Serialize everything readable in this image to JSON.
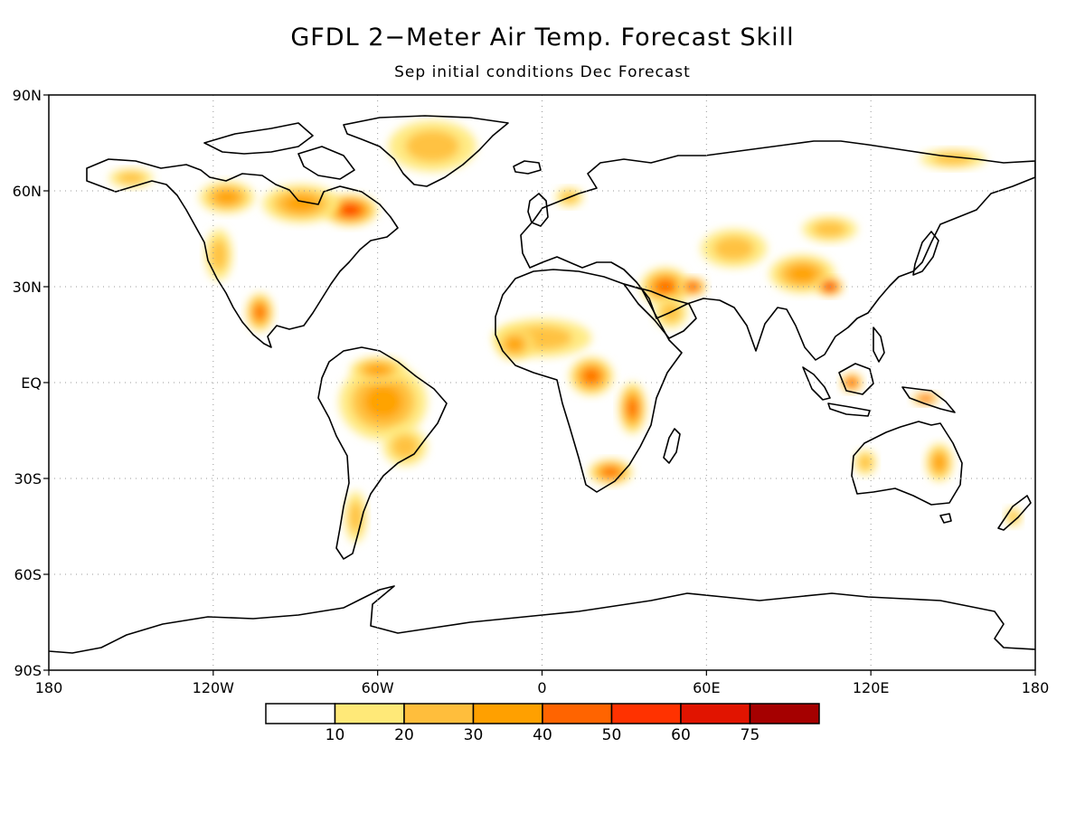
{
  "title": "GFDL 2−Meter Air Temp. Forecast Skill",
  "subtitle": "Sep initial conditions   Dec Forecast",
  "map": {
    "lon_range": [
      -180,
      180
    ],
    "lat_range": [
      -90,
      90
    ],
    "lat_ticks": [
      {
        "value": 90,
        "label": "90N"
      },
      {
        "value": 60,
        "label": "60N"
      },
      {
        "value": 30,
        "label": "30N"
      },
      {
        "value": 0,
        "label": "EQ"
      },
      {
        "value": -30,
        "label": "30S"
      },
      {
        "value": -60,
        "label": "60S"
      },
      {
        "value": -90,
        "label": "90S"
      }
    ],
    "lon_ticks": [
      {
        "value": -180,
        "label": "180"
      },
      {
        "value": -120,
        "label": "120W"
      },
      {
        "value": -60,
        "label": "60W"
      },
      {
        "value": 0,
        "label": "0"
      },
      {
        "value": 60,
        "label": "60E"
      },
      {
        "value": 120,
        "label": "120E"
      },
      {
        "value": 180,
        "label": "180"
      }
    ],
    "grid": "dotted"
  },
  "colorbar": {
    "colors": [
      "#ffffff",
      "#ffe978",
      "#ffbe3c",
      "#ffa000",
      "#ff6400",
      "#ff3200",
      "#e11400",
      "#a50000"
    ],
    "labels": [
      "10",
      "20",
      "30",
      "40",
      "50",
      "60",
      "75"
    ]
  },
  "skill_regions": [
    {
      "name": "eastern-canada",
      "lon": -70,
      "lat": 54,
      "rx": 10,
      "ry": 5,
      "level": 5
    },
    {
      "name": "hudson-bay-region",
      "lon": -88,
      "lat": 56,
      "rx": 14,
      "ry": 6,
      "level": 3
    },
    {
      "name": "western-canada",
      "lon": -115,
      "lat": 58,
      "rx": 10,
      "ry": 5,
      "level": 3
    },
    {
      "name": "greenland",
      "lon": -40,
      "lat": 74,
      "rx": 16,
      "ry": 8,
      "level": 2
    },
    {
      "name": "alaska",
      "lon": -150,
      "lat": 64,
      "rx": 8,
      "ry": 3,
      "level": 2
    },
    {
      "name": "western-us",
      "lon": -118,
      "lat": 40,
      "rx": 5,
      "ry": 8,
      "level": 2
    },
    {
      "name": "mexico",
      "lon": -103,
      "lat": 22,
      "rx": 5,
      "ry": 6,
      "level": 4
    },
    {
      "name": "amazon",
      "lon": -58,
      "lat": -6,
      "rx": 16,
      "ry": 12,
      "level": 3
    },
    {
      "name": "northern-south-america",
      "lon": -60,
      "lat": 4,
      "rx": 10,
      "ry": 4,
      "level": 3
    },
    {
      "name": "southern-brazil",
      "lon": -50,
      "lat": -20,
      "rx": 8,
      "ry": 6,
      "level": 2
    },
    {
      "name": "patagonia",
      "lon": -68,
      "lat": -42,
      "rx": 4,
      "ry": 8,
      "level": 2
    },
    {
      "name": "sahel",
      "lon": 0,
      "lat": 14,
      "rx": 18,
      "ry": 6,
      "level": 2
    },
    {
      "name": "west-africa",
      "lon": -10,
      "lat": 12,
      "rx": 7,
      "ry": 5,
      "level": 3
    },
    {
      "name": "central-africa",
      "lon": 18,
      "lat": 2,
      "rx": 8,
      "ry": 6,
      "level": 4
    },
    {
      "name": "east-africa",
      "lon": 33,
      "lat": -8,
      "rx": 5,
      "ry": 8,
      "level": 4
    },
    {
      "name": "southern-africa",
      "lon": 25,
      "lat": -28,
      "rx": 8,
      "ry": 4,
      "level": 4
    },
    {
      "name": "middle-east",
      "lon": 45,
      "lat": 30,
      "rx": 9,
      "ry": 6,
      "level": 4
    },
    {
      "name": "arabian-peninsula",
      "lon": 47,
      "lat": 22,
      "rx": 6,
      "ry": 5,
      "level": 2
    },
    {
      "name": "iran",
      "lon": 55,
      "lat": 30,
      "rx": 5,
      "ry": 3,
      "level": 5
    },
    {
      "name": "central-asia",
      "lon": 70,
      "lat": 42,
      "rx": 12,
      "ry": 6,
      "level": 2
    },
    {
      "name": "tibet-west-china",
      "lon": 95,
      "lat": 34,
      "rx": 12,
      "ry": 6,
      "level": 3
    },
    {
      "name": "south-china",
      "lon": 105,
      "lat": 30,
      "rx": 5,
      "ry": 3,
      "level": 6
    },
    {
      "name": "mongolia",
      "lon": 105,
      "lat": 48,
      "rx": 10,
      "ry": 4,
      "level": 2
    },
    {
      "name": "siberia-north",
      "lon": 150,
      "lat": 70,
      "rx": 12,
      "ry": 3,
      "level": 2
    },
    {
      "name": "borneo",
      "lon": 113,
      "lat": 0,
      "rx": 4,
      "ry": 3,
      "level": 5
    },
    {
      "name": "new-guinea",
      "lon": 140,
      "lat": -5,
      "rx": 5,
      "ry": 2,
      "level": 5
    },
    {
      "name": "east-australia",
      "lon": 145,
      "lat": -25,
      "rx": 5,
      "ry": 6,
      "level": 3
    },
    {
      "name": "west-australia",
      "lon": 118,
      "lat": -25,
      "rx": 4,
      "ry": 4,
      "level": 2
    },
    {
      "name": "new-zealand",
      "lon": 172,
      "lat": -42,
      "rx": 3,
      "ry": 3,
      "level": 2
    },
    {
      "name": "northern-europe",
      "lon": 10,
      "lat": 58,
      "rx": 5,
      "ry": 3,
      "level": 2
    }
  ]
}
